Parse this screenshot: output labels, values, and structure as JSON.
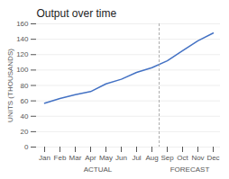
{
  "chart_data": {
    "type": "line",
    "title": "Output over time",
    "ylabel": "UNITS (THOUSANDS)",
    "categories": [
      "Jan",
      "Feb",
      "Mar",
      "Apr",
      "May",
      "Jun",
      "Jul",
      "Aug",
      "Sep",
      "Oct",
      "Nov",
      "Dec"
    ],
    "values": [
      57,
      63,
      68,
      72,
      82,
      88,
      97,
      103,
      112,
      125,
      138,
      148
    ],
    "color": "#4472C4",
    "ylim": [
      0,
      160
    ],
    "yticks": [
      0,
      20,
      40,
      60,
      80,
      100,
      120,
      140,
      160
    ],
    "grid": true,
    "annotations": [
      {
        "text": "ACTUAL",
        "from": "Jan",
        "to": "Aug"
      },
      {
        "text": "FORECAST",
        "from": "Sep",
        "to": "Dec"
      }
    ],
    "divider": {
      "before": "Sep",
      "color": "#999999",
      "line_style": "dashed"
    }
  }
}
